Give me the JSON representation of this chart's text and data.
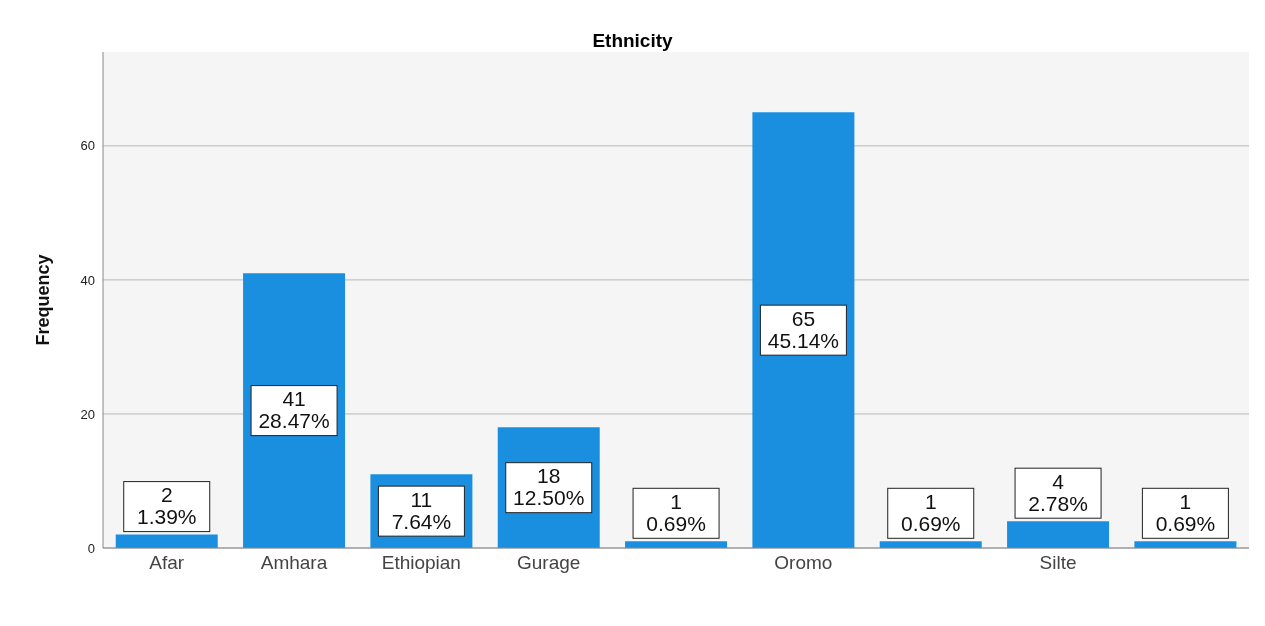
{
  "chart_data": {
    "type": "bar",
    "title": "Ethnicity",
    "ylabel": "Frequency",
    "categories": [
      "Afar",
      "Amhara",
      "Ethiopian",
      "Gurage",
      null,
      "Oromo",
      null,
      "Silte",
      null
    ],
    "values": [
      2,
      41,
      11,
      18,
      1,
      65,
      1,
      4,
      1
    ],
    "value_labels": [
      "2\n1.39%",
      "41\n28.47%",
      "11\n7.64%",
      "18\n12.50%",
      "1\n0.69%",
      "65\n45.14%",
      "1\n0.69%",
      "4\n2.78%",
      "1\n0.69%"
    ],
    "color": "#1a8fe0",
    "ylim": [
      0,
      74
    ],
    "yticks": [
      0,
      20,
      40,
      60
    ],
    "grid": "y"
  }
}
